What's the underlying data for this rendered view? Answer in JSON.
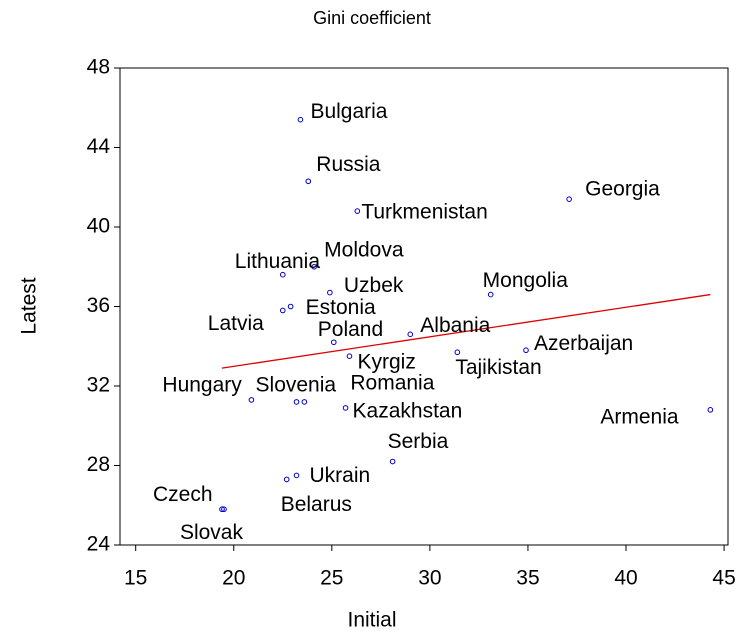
{
  "chart_data": {
    "type": "scatter",
    "title": "Gini coefficient",
    "x_label": "Initial",
    "y_label": "Latest",
    "labels": [
      "Bulgaria",
      "Russia",
      "Turkmenistan",
      "Georgia",
      "Moldova",
      "Lithuania",
      "Uzbek",
      "Mongolia",
      "Estonia",
      "Latvia",
      "Poland",
      "Albania",
      "Kyrgiz",
      "Tajikistan",
      "Azerbaijan",
      "Hungary",
      "Slovenia",
      "Romania",
      "Kazakhstan",
      "Armenia",
      "Serbia",
      "Ukrain",
      "Belarus",
      "Czech",
      "Slovak"
    ],
    "x": [
      23.4,
      23.8,
      26.3,
      37.1,
      24.1,
      22.5,
      24.9,
      33.1,
      22.9,
      22.5,
      25.1,
      29.0,
      25.9,
      31.4,
      34.9,
      20.9,
      23.2,
      23.6,
      25.7,
      44.3,
      28.1,
      23.2,
      22.7,
      19.4,
      19.5
    ],
    "y": [
      45.4,
      42.3,
      40.8,
      41.4,
      38.0,
      37.6,
      36.7,
      36.6,
      36.0,
      35.8,
      34.2,
      34.6,
      33.5,
      33.7,
      33.8,
      31.3,
      31.2,
      31.2,
      30.9,
      30.8,
      28.2,
      27.5,
      27.3,
      25.8,
      25.8
    ],
    "color": "#0000cc",
    "fit_line": {
      "x": [
        19.4,
        44.3
      ],
      "y": [
        32.9,
        36.6
      ],
      "color": "#e00000"
    },
    "xlim": [
      14.2,
      45.2
    ],
    "xticks": [
      15,
      20,
      25,
      30,
      35,
      40,
      45
    ],
    "ylim": [
      24,
      48
    ],
    "yticks": [
      24,
      28,
      32,
      36,
      40,
      44,
      48
    ]
  }
}
